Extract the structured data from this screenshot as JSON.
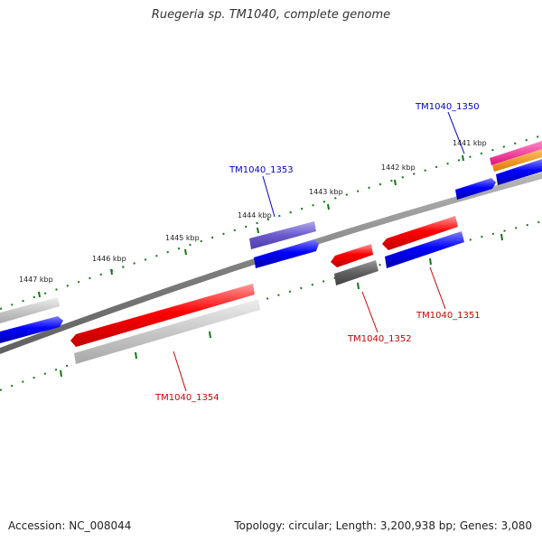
{
  "title": "Ruegeria sp. TM1040, complete genome",
  "footer": {
    "accession": "Accession: NC_008044",
    "summary": "Topology: circular; Length: 3,200,938 bp; Genes: 3,080"
  },
  "scale_ticks": [
    "1441 kbp",
    "1442 kbp",
    "1443 kbp",
    "1444 kbp",
    "1445 kbp",
    "1446 kbp",
    "1447 kbp"
  ],
  "gene_labels": {
    "tm1040_1350": "TM1040_1350",
    "tm1040_1351": "TM1040_1351",
    "tm1040_1352": "TM1040_1352",
    "tm1040_1353": "TM1040_1353",
    "tm1040_1354": "TM1040_1354"
  },
  "colors": {
    "backbone": "#808080",
    "forward_label": "#0000cc",
    "reverse_label": "#cc0000",
    "tick": "#117711",
    "blue": "#0000ff",
    "red": "#ff0000",
    "slate": "#6a5acd",
    "silver": "#c8c8c8",
    "dark_gray": "#606060",
    "magenta": "#ff1493",
    "orange": "#ff8c00"
  }
}
